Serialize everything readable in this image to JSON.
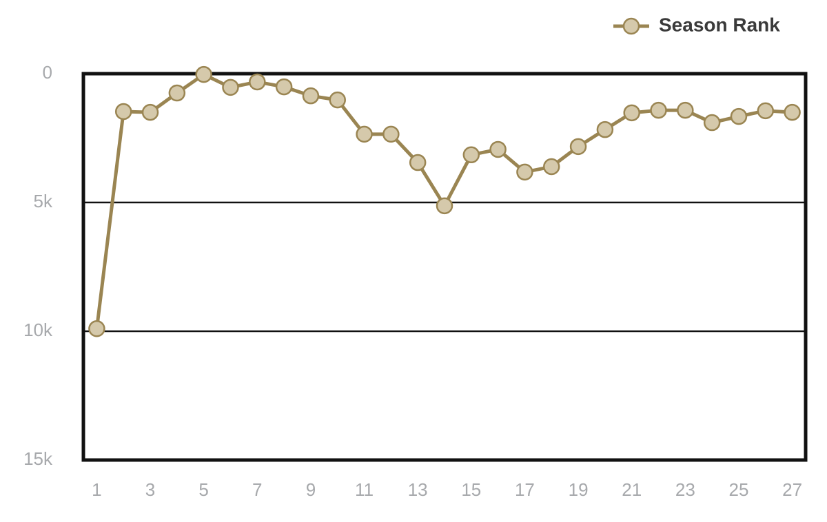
{
  "chart_data": {
    "type": "line",
    "x": [
      1,
      2,
      3,
      4,
      5,
      6,
      7,
      8,
      9,
      10,
      11,
      12,
      13,
      14,
      15,
      16,
      17,
      18,
      19,
      20,
      21,
      22,
      23,
      24,
      25,
      26,
      27
    ],
    "series": [
      {
        "name": "Season Rank",
        "color": "#9a8552",
        "marker_fill": "#d5c9ab",
        "values": [
          9900,
          1470,
          1500,
          750,
          30,
          530,
          320,
          510,
          860,
          1020,
          2350,
          2350,
          3450,
          5130,
          3150,
          2940,
          3820,
          3610,
          2830,
          2170,
          1520,
          1420,
          1420,
          1900,
          1660,
          1440,
          1500
        ]
      }
    ],
    "xlim": [
      0.5,
      27.5
    ],
    "xticks": [
      1,
      3,
      5,
      7,
      9,
      11,
      13,
      15,
      17,
      19,
      21,
      23,
      25,
      27
    ],
    "ylim": [
      0,
      15000
    ],
    "y_inverted": true,
    "yticks": [
      0,
      {
        "value": 5000,
        "label": "5k"
      },
      {
        "value": 10000,
        "label": "10k"
      },
      {
        "value": 15000,
        "label": "15k"
      }
    ],
    "grid": true,
    "legend": "top-right"
  }
}
